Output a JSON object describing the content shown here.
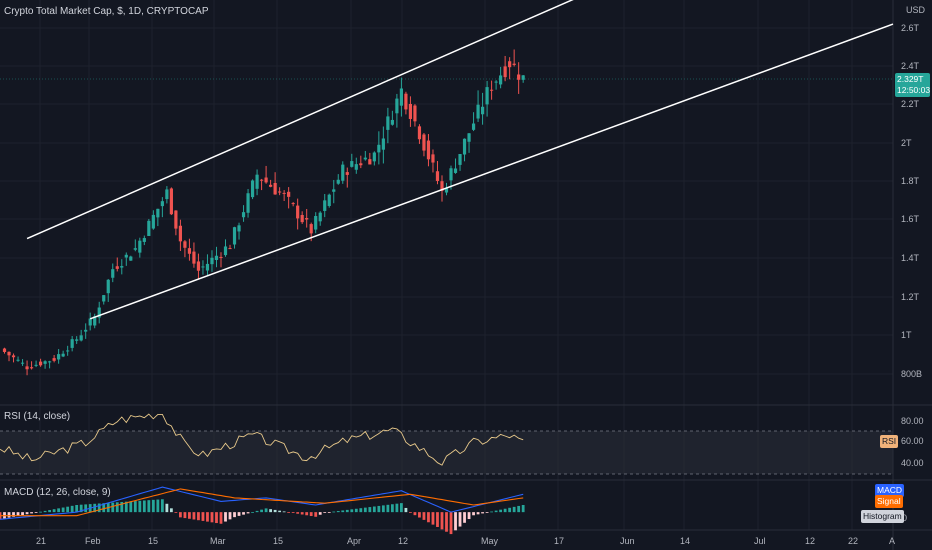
{
  "header": {
    "symbol_title": "Crypto Total Market Cap, $, 1D, CRYPTOCAP",
    "currency": "USD"
  },
  "price_scale": {
    "labels": [
      "2.6T",
      "2.4T",
      "2.2T",
      "2T",
      "1.8T",
      "1.6T",
      "1.4T",
      "1.2T",
      "1T",
      "800B"
    ],
    "last_price": "2.329T",
    "countdown": "12:50:03"
  },
  "rsi": {
    "title": "RSI (14, close)",
    "levels": [
      "80.00",
      "60.00",
      "40.00"
    ],
    "tag": "RSI",
    "tag_color": "#f0b27a"
  },
  "macd": {
    "title": "MACD (12, 26, close, 9)",
    "tags": {
      "macd": "MACD",
      "signal": "Signal",
      "histogram": "Histogram"
    },
    "zero_label": "0",
    "macd_color": "#2962ff",
    "signal_color": "#ff6d00"
  },
  "time_axis": {
    "labels": [
      "21",
      "Feb",
      "15",
      "Mar",
      "15",
      "Apr",
      "12",
      "May",
      "17",
      "Jun",
      "14",
      "Jul",
      "12",
      "22",
      "A"
    ]
  },
  "colors": {
    "background": "#131722",
    "up": "#26a69a",
    "down": "#ef5350",
    "channel": "#ffffff",
    "rsi_line": "#e8c98b",
    "grid": "#1e222d"
  },
  "chart_data": {
    "type": "candlestick",
    "title": "Crypto Total Market Cap, $, 1D, CRYPTOCAP",
    "ylabel": "USD",
    "ylim": [
      0.75,
      2.72
    ],
    "y_unit": "T",
    "x_range": [
      "2021-01-15",
      "2021-08-01"
    ],
    "close_path": [
      {
        "date": "2021-01-15",
        "close": 0.98
      },
      {
        "date": "2021-01-21",
        "close": 0.89
      },
      {
        "date": "2021-01-27",
        "close": 0.93
      },
      {
        "date": "2021-02-01",
        "close": 1.03
      },
      {
        "date": "2021-02-05",
        "close": 1.14
      },
      {
        "date": "2021-02-09",
        "close": 1.38
      },
      {
        "date": "2021-02-14",
        "close": 1.48
      },
      {
        "date": "2021-02-21",
        "close": 1.76
      },
      {
        "date": "2021-02-24",
        "close": 1.52
      },
      {
        "date": "2021-02-28",
        "close": 1.37
      },
      {
        "date": "2021-03-07",
        "close": 1.5
      },
      {
        "date": "2021-03-13",
        "close": 1.85
      },
      {
        "date": "2021-03-19",
        "close": 1.74
      },
      {
        "date": "2021-03-25",
        "close": 1.57
      },
      {
        "date": "2021-04-01",
        "close": 1.87
      },
      {
        "date": "2021-04-08",
        "close": 1.95
      },
      {
        "date": "2021-04-14",
        "close": 2.27
      },
      {
        "date": "2021-04-18",
        "close": 2.06
      },
      {
        "date": "2021-04-23",
        "close": 1.76
      },
      {
        "date": "2021-04-30",
        "close": 2.11
      },
      {
        "date": "2021-05-04",
        "close": 2.3
      },
      {
        "date": "2021-05-08",
        "close": 2.41
      },
      {
        "date": "2021-05-11",
        "close": 2.33
      }
    ],
    "channel_lines": [
      {
        "name": "upper",
        "points": [
          {
            "date": "2021-01-21",
            "value": 1.53
          },
          {
            "date": "2021-06-04",
            "value": 2.85
          }
        ]
      },
      {
        "name": "lower",
        "points": [
          {
            "date": "2021-02-04",
            "value": 1.13
          },
          {
            "date": "2021-08-01",
            "value": 2.6
          }
        ]
      }
    ],
    "rsi_ylim": [
      30,
      90
    ],
    "rsi_bands": [
      70,
      30
    ],
    "rsi_path": [
      {
        "date": "2021-01-15",
        "value": 56
      },
      {
        "date": "2021-01-22",
        "value": 46
      },
      {
        "date": "2021-02-03",
        "value": 60
      },
      {
        "date": "2021-02-10",
        "value": 78
      },
      {
        "date": "2021-02-20",
        "value": 84
      },
      {
        "date": "2021-02-25",
        "value": 58
      },
      {
        "date": "2021-03-01",
        "value": 50
      },
      {
        "date": "2021-03-12",
        "value": 66
      },
      {
        "date": "2021-03-24",
        "value": 48
      },
      {
        "date": "2021-04-02",
        "value": 62
      },
      {
        "date": "2021-04-12",
        "value": 70
      },
      {
        "date": "2021-04-23",
        "value": 44
      },
      {
        "date": "2021-04-30",
        "value": 60
      },
      {
        "date": "2021-05-08",
        "value": 66
      },
      {
        "date": "2021-05-11",
        "value": 60
      }
    ],
    "macd_ylim": [
      -0.05,
      0.09
    ],
    "macd_path": [
      {
        "date": "2021-01-15",
        "value": -0.02
      },
      {
        "date": "2021-02-01",
        "value": 0
      },
      {
        "date": "2021-02-20",
        "value": 0.07
      },
      {
        "date": "2021-03-05",
        "value": 0.03
      },
      {
        "date": "2021-03-15",
        "value": 0.04
      },
      {
        "date": "2021-03-26",
        "value": 0.02
      },
      {
        "date": "2021-04-14",
        "value": 0.06
      },
      {
        "date": "2021-04-25",
        "value": 0
      },
      {
        "date": "2021-05-11",
        "value": 0.05
      }
    ],
    "signal_path": [
      {
        "date": "2021-01-15",
        "value": -0.01
      },
      {
        "date": "2021-02-01",
        "value": -0.01
      },
      {
        "date": "2021-02-24",
        "value": 0.065
      },
      {
        "date": "2021-03-08",
        "value": 0.04
      },
      {
        "date": "2021-03-28",
        "value": 0.025
      },
      {
        "date": "2021-04-16",
        "value": 0.05
      },
      {
        "date": "2021-04-30",
        "value": 0.02
      },
      {
        "date": "2021-05-11",
        "value": 0.04
      }
    ]
  }
}
